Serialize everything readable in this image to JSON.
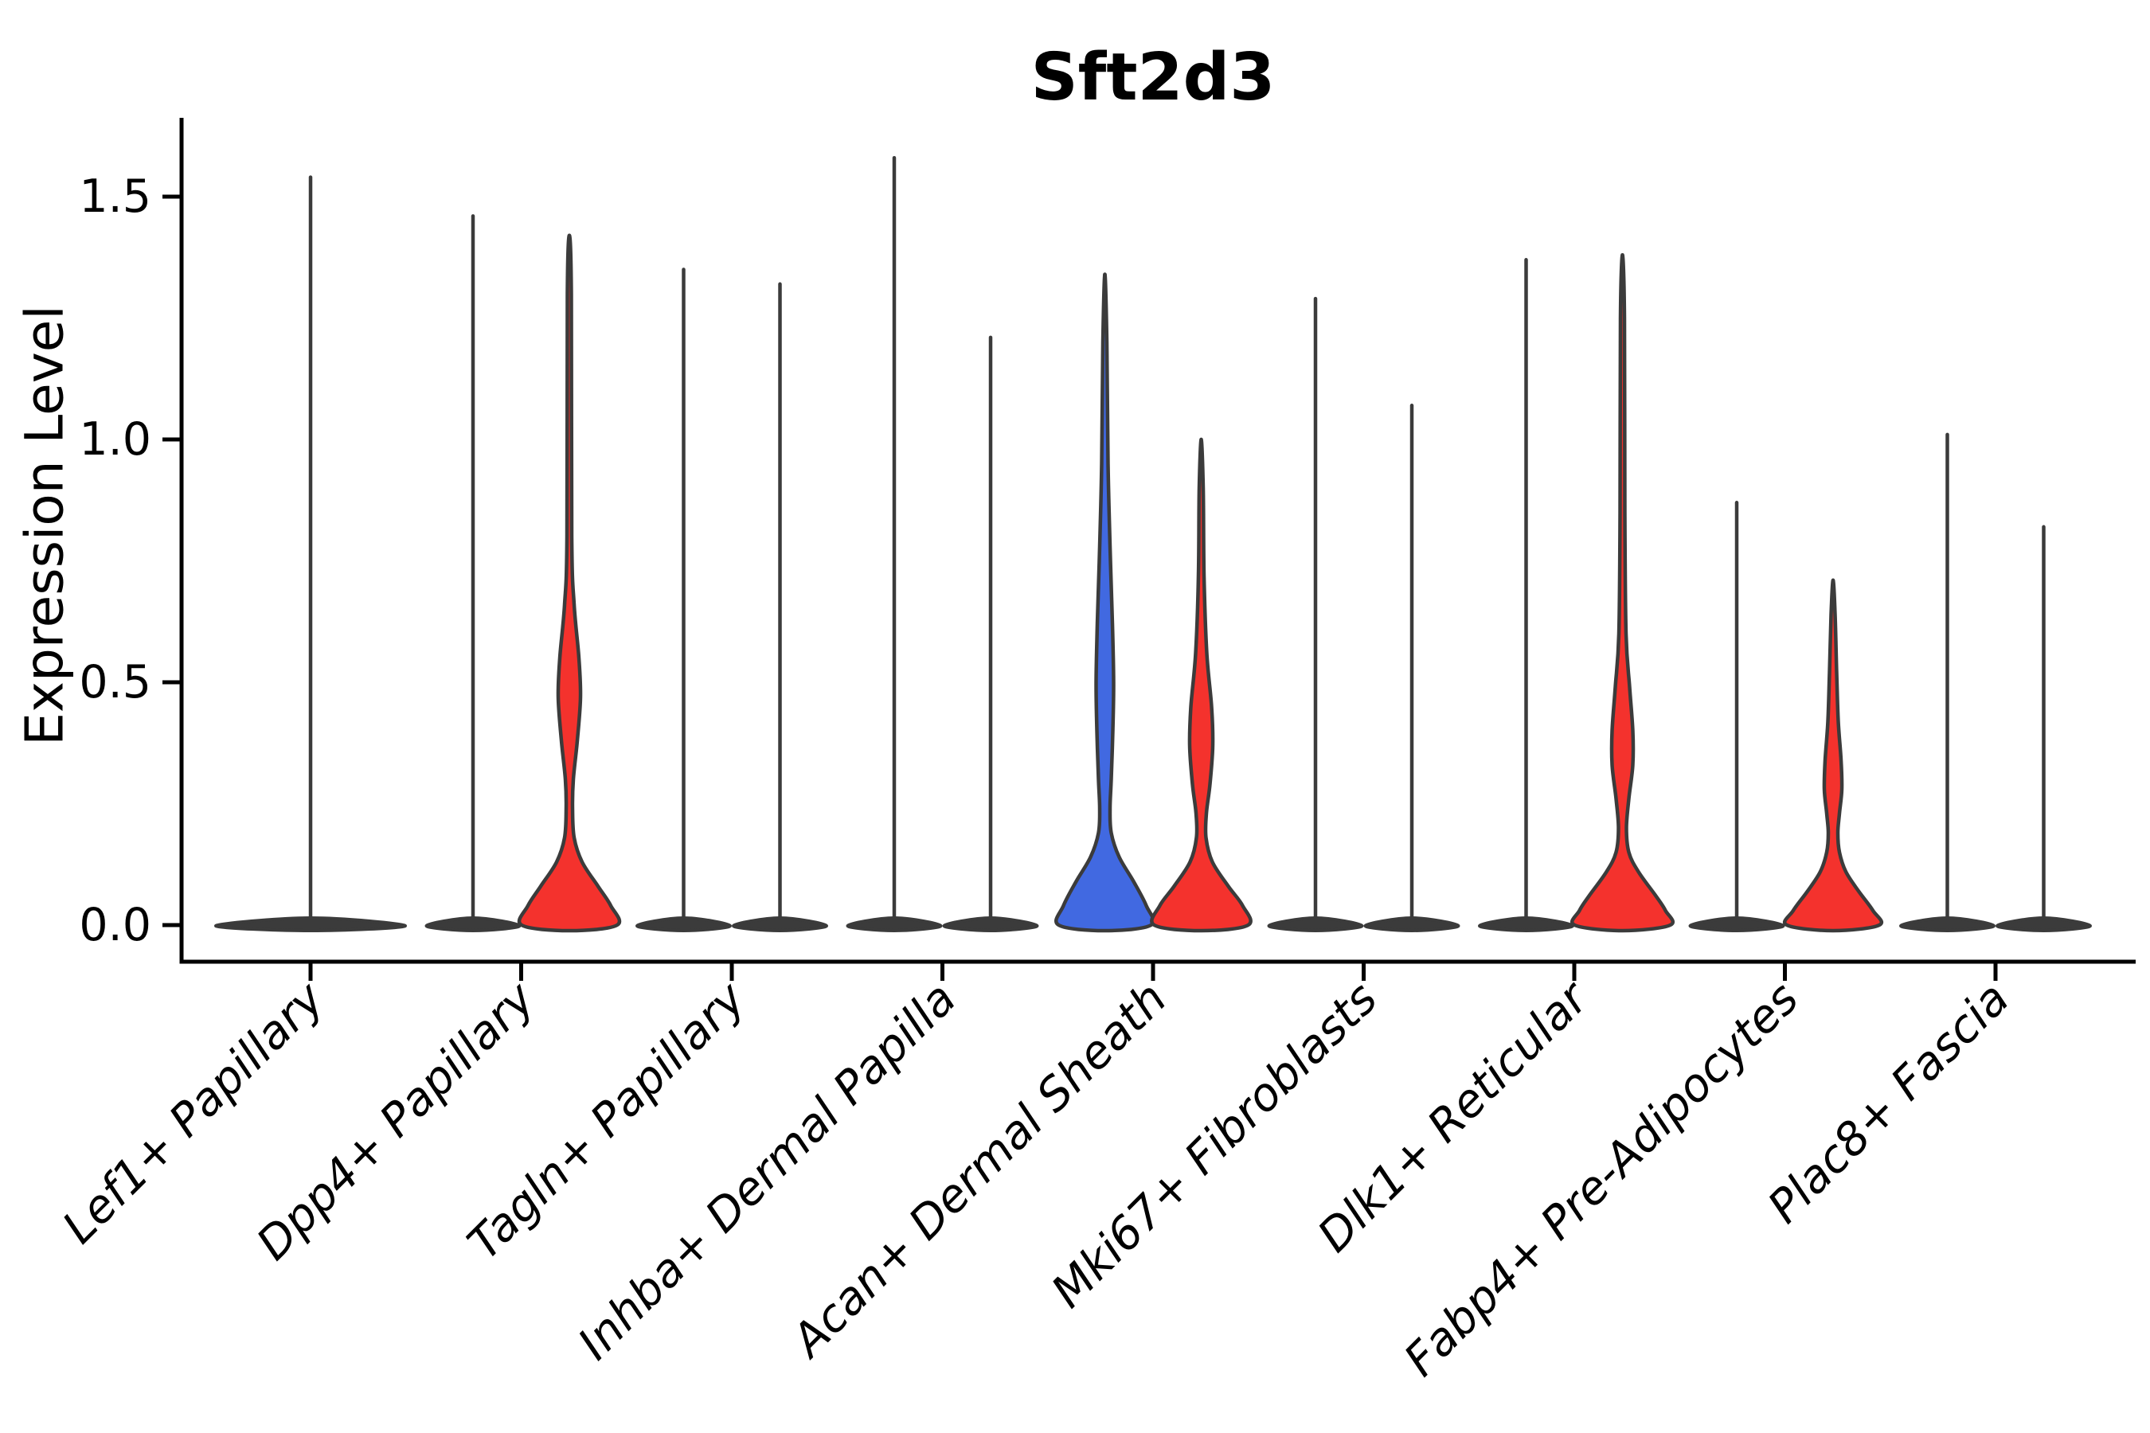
{
  "chart_data": {
    "type": "violin",
    "title": "Sft2d3",
    "xlabel": "",
    "ylabel": "Expression Level",
    "ytick_labels": [
      "0.0",
      "0.5",
      "1.0",
      "1.5"
    ],
    "ytick_values": [
      0,
      0.5,
      1.0,
      1.5
    ],
    "ylim": [
      -0.07,
      1.66
    ],
    "grid": false,
    "legend": null,
    "colors": {
      "blue": "#4169E1",
      "red": "#F4322D",
      "outline": "#3B3B3B",
      "axis": "#000000"
    },
    "categories": [
      {
        "label": "Lef1+ Papillary",
        "violins": [
          {
            "side": "center",
            "style": "flat",
            "fill": null,
            "max": 1.54,
            "span": 2
          }
        ]
      },
      {
        "label": "Dpp4+ Papillary",
        "violins": [
          {
            "side": "left",
            "style": "flat",
            "fill": "blue",
            "max": 1.46
          },
          {
            "side": "right",
            "style": "blob",
            "fill": "red",
            "max": 1.42,
            "profile": [
              [
                1.42,
                0
              ],
              [
                1.3,
                2.5
              ],
              [
                0.8,
                3
              ],
              [
                0.66,
                6
              ],
              [
                0.55,
                12
              ],
              [
                0.47,
                14
              ],
              [
                0.38,
                10
              ],
              [
                0.3,
                5
              ],
              [
                0.24,
                4
              ],
              [
                0.18,
                6
              ],
              [
                0.13,
                16
              ],
              [
                0.08,
                36
              ],
              [
                0.04,
                52
              ],
              [
                0,
                60
              ]
            ]
          }
        ]
      },
      {
        "label": "Tagln+ Papillary",
        "violins": [
          {
            "side": "left",
            "style": "flat",
            "fill": "blue",
            "max": 1.35
          },
          {
            "side": "right",
            "style": "flat",
            "fill": "red",
            "max": 1.32
          }
        ]
      },
      {
        "label": "Inhba+ Dermal Papilla",
        "violins": [
          {
            "side": "left",
            "style": "flat",
            "fill": "blue",
            "max": 1.58
          },
          {
            "side": "right",
            "style": "flat",
            "fill": "red",
            "max": 1.21
          }
        ]
      },
      {
        "label": "Acan+ Dermal Sheath",
        "violins": [
          {
            "side": "left",
            "style": "blob",
            "fill": "blue",
            "max": 1.34,
            "profile": [
              [
                1.34,
                0
              ],
              [
                1.2,
                2.5
              ],
              [
                0.95,
                4
              ],
              [
                0.78,
                6.5
              ],
              [
                0.62,
                9.5
              ],
              [
                0.5,
                11
              ],
              [
                0.4,
                10
              ],
              [
                0.3,
                8
              ],
              [
                0.24,
                6.5
              ],
              [
                0.19,
                8
              ],
              [
                0.14,
                18
              ],
              [
                0.09,
                36
              ],
              [
                0.04,
                52
              ],
              [
                0,
                58
              ]
            ]
          },
          {
            "side": "right",
            "style": "blob",
            "fill": "red",
            "max": 1.0,
            "profile": [
              [
                1.0,
                0
              ],
              [
                0.9,
                2.5
              ],
              [
                0.72,
                3.5
              ],
              [
                0.56,
                7
              ],
              [
                0.45,
                13
              ],
              [
                0.37,
                14.5
              ],
              [
                0.29,
                11
              ],
              [
                0.23,
                6.5
              ],
              [
                0.18,
                6
              ],
              [
                0.13,
                14
              ],
              [
                0.08,
                34
              ],
              [
                0.04,
                52
              ],
              [
                0,
                59
              ]
            ]
          }
        ]
      },
      {
        "label": "Mki67+ Fibroblasts",
        "violins": [
          {
            "side": "left",
            "style": "flat",
            "fill": "blue",
            "max": 1.29
          },
          {
            "side": "right",
            "style": "flat",
            "fill": "red",
            "max": 1.07
          }
        ]
      },
      {
        "label": "Dlk1+ Reticular",
        "violins": [
          {
            "side": "left",
            "style": "flat",
            "fill": "blue",
            "max": 1.37
          },
          {
            "side": "right",
            "style": "blob",
            "fill": "red",
            "max": 1.38,
            "profile": [
              [
                1.38,
                0
              ],
              [
                1.25,
                2.5
              ],
              [
                0.85,
                3
              ],
              [
                0.6,
                4.5
              ],
              [
                0.49,
                9
              ],
              [
                0.4,
                13
              ],
              [
                0.33,
                13
              ],
              [
                0.26,
                8
              ],
              [
                0.2,
                5
              ],
              [
                0.15,
                8
              ],
              [
                0.11,
                20
              ],
              [
                0.06,
                42
              ],
              [
                0.03,
                54
              ],
              [
                0,
                60
              ]
            ]
          }
        ]
      },
      {
        "label": "Fabp4+ Pre-Adipocytes",
        "violins": [
          {
            "side": "left",
            "style": "flat",
            "fill": "blue",
            "max": 0.87
          },
          {
            "side": "right",
            "style": "blob",
            "fill": "red",
            "max": 0.71,
            "profile": [
              [
                0.71,
                0
              ],
              [
                0.64,
                2.5
              ],
              [
                0.52,
                4.5
              ],
              [
                0.42,
                6.5
              ],
              [
                0.34,
                10
              ],
              [
                0.28,
                11
              ],
              [
                0.23,
                8
              ],
              [
                0.19,
                6
              ],
              [
                0.15,
                8
              ],
              [
                0.11,
                16
              ],
              [
                0.07,
                32
              ],
              [
                0.03,
                50
              ],
              [
                0,
                58
              ]
            ]
          }
        ]
      },
      {
        "label": "Plac8+ Fascia",
        "violins": [
          {
            "side": "left",
            "style": "flat",
            "fill": "blue",
            "max": 1.01
          },
          {
            "side": "right",
            "style": "flat",
            "fill": "red",
            "max": 0.82
          }
        ]
      }
    ]
  }
}
